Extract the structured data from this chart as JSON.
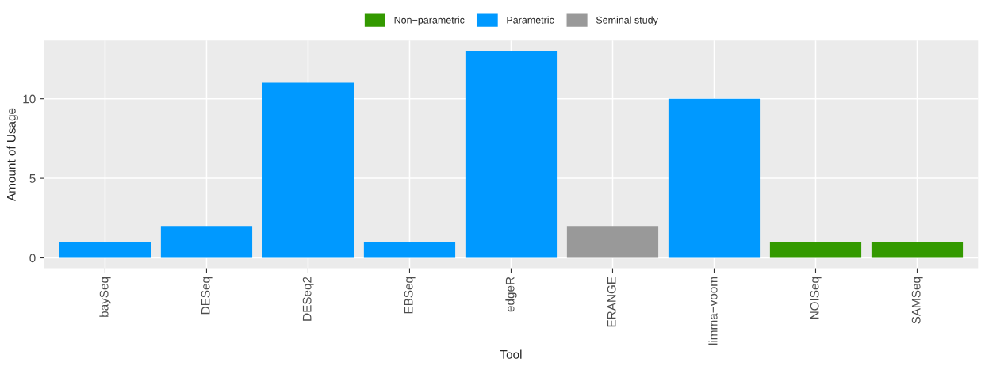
{
  "chart_data": {
    "type": "bar",
    "xlabel": "Tool",
    "ylabel": "Amount of Usage",
    "categories": [
      "baySeq",
      "DESeq",
      "DESeq2",
      "EBSeq",
      "edgeR",
      "ERANGE",
      "limma−voom",
      "NOISeq",
      "SAMSeq"
    ],
    "series": [
      {
        "name": "Non−parametric",
        "color": "#339900",
        "values": [
          null,
          null,
          null,
          null,
          null,
          null,
          null,
          1,
          1
        ]
      },
      {
        "name": "Parametric",
        "color": "#0099ff",
        "values": [
          1,
          2,
          11,
          1,
          13,
          null,
          10,
          null,
          null
        ]
      },
      {
        "name": "Seminal study",
        "color": "#999999",
        "values": [
          null,
          null,
          null,
          null,
          null,
          2,
          null,
          null,
          null
        ]
      }
    ],
    "ylim": [
      -0.65,
      13.65
    ],
    "yticks": [
      0,
      5,
      10
    ],
    "grid": true,
    "legend": "top"
  }
}
